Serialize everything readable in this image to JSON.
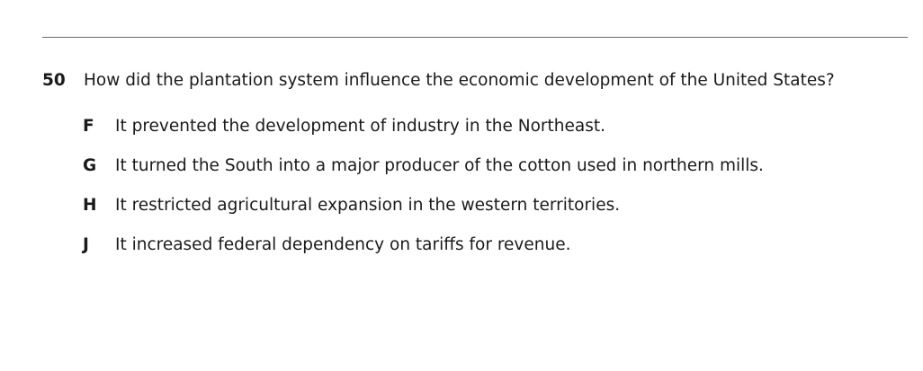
{
  "question": {
    "number": "50",
    "text": "How did the plantation system influence the economic development of the United States?"
  },
  "choices": [
    {
      "letter": "F",
      "text": "It prevented the development of industry in the Northeast."
    },
    {
      "letter": "G",
      "text": "It turned the South into a major producer of the cotton used in northern mills."
    },
    {
      "letter": "H",
      "text": "It restricted agricultural expansion in the western territories."
    },
    {
      "letter": "J",
      "text": "It increased federal dependency on tariffs for revenue."
    }
  ]
}
